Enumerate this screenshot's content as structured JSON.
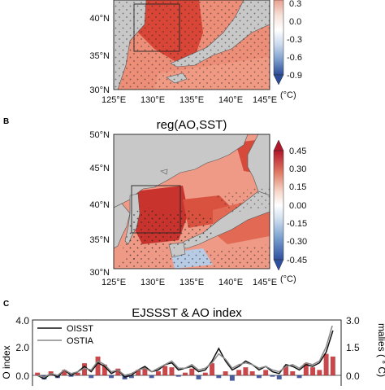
{
  "panels": {
    "a": {
      "lat_labels": [
        "40°N",
        "35°N",
        "30°N"
      ],
      "lon_labels": [
        "125°E",
        "130°E",
        "135°E",
        "140°E",
        "145°E"
      ],
      "colorbar_ticks": [
        "0.3",
        "0.0",
        "-0.3",
        "-0.6",
        "-0.9"
      ],
      "colorbar_unit": "(°C)"
    },
    "b": {
      "letter": "B",
      "title": "reg(AO,SST)",
      "lat_labels": [
        "50°N",
        "45°N",
        "40°N",
        "35°N",
        "30°N"
      ],
      "lon_labels": [
        "125°E",
        "130°E",
        "135°E",
        "140°E",
        "145°E"
      ],
      "colorbar_ticks": [
        "0.45",
        "0.30",
        "0.15",
        "0.00",
        "-0.15",
        "-0.30",
        "-0.45"
      ],
      "colorbar_unit": "(°C)"
    },
    "c": {
      "letter": "C",
      "title": "EJSSST & AO index",
      "left_axis_label": "O index",
      "right_axis_label": "malies ( ° C)",
      "left_ticks": [
        "4.0",
        "2.0",
        "0.0"
      ],
      "right_ticks": [
        "3.0",
        "1.5",
        "0.0"
      ]
    }
  },
  "colors": {
    "land": "#c8c8c8",
    "sea_warm": "#e8806a",
    "sea_hot": "#c62a2f",
    "sea_cool": "#a9c1de",
    "bar_positive": "#c0282d",
    "bar_negative": "#2a3f8f"
  },
  "chart_data": {
    "type": "bar",
    "title": "EJSSST & AO index",
    "ylim_left": [
      -0.4,
      4.0
    ],
    "ylim_right": [
      -0.3,
      3.0
    ],
    "legend": "top-left",
    "bars": [
      0.2,
      -0.3,
      0.3,
      -0.2,
      0.4,
      -0.1,
      0.2,
      0.9,
      -0.2,
      1.4,
      0.8,
      -0.2,
      0.5,
      -0.3,
      -0.2,
      0.4,
      0.6,
      -0.2,
      0.3,
      0.7,
      0.6,
      -0.1,
      0.2,
      0.5,
      -0.3,
      0.2,
      0.9,
      -0.2,
      0.3,
      -0.4,
      0.4,
      0.6,
      0.3,
      -0.2,
      0.4,
      -0.1,
      -0.3,
      0.7,
      0.3,
      -0.2,
      0.9,
      0.6,
      0.4,
      1.6,
      1.4
    ],
    "series": [
      {
        "name": "OISST",
        "values": [
          0.0,
          -0.2,
          0.1,
          -0.1,
          0.3,
          0.0,
          0.2,
          0.5,
          0.2,
          0.7,
          0.5,
          0.1,
          0.3,
          -0.1,
          0.0,
          0.3,
          0.5,
          0.2,
          0.3,
          0.6,
          0.7,
          0.3,
          0.4,
          0.5,
          0.2,
          0.3,
          0.8,
          1.5,
          0.8,
          0.3,
          0.5,
          0.8,
          0.6,
          0.3,
          0.5,
          0.2,
          0.1,
          0.6,
          0.5,
          0.3,
          0.6,
          0.5,
          0.7,
          1.3,
          2.5
        ]
      },
      {
        "name": "OSTIA",
        "values": [
          0.0,
          -0.1,
          0.1,
          0.0,
          0.3,
          0.1,
          0.2,
          0.4,
          0.3,
          0.8,
          0.6,
          0.2,
          0.3,
          0.0,
          0.1,
          0.3,
          0.4,
          0.2,
          0.4,
          0.6,
          0.8,
          0.4,
          0.4,
          0.6,
          0.3,
          0.4,
          0.7,
          1.2,
          0.9,
          0.4,
          0.6,
          0.7,
          0.6,
          0.4,
          0.5,
          0.3,
          0.2,
          0.5,
          0.6,
          0.4,
          0.7,
          0.6,
          0.8,
          1.6,
          2.9
        ]
      }
    ]
  }
}
